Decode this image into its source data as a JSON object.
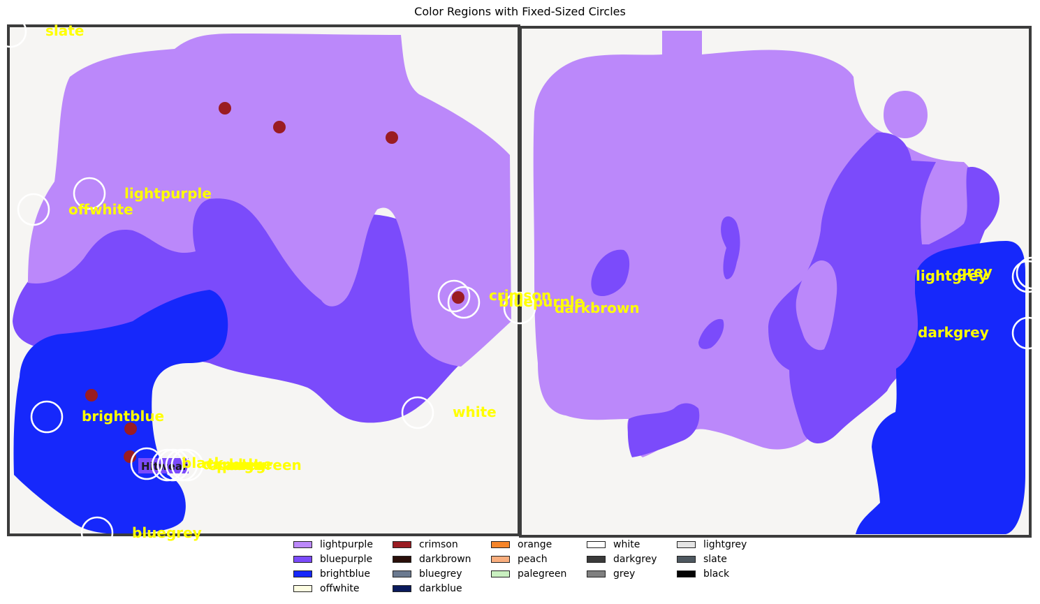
{
  "title": "Color Regions with Fixed-Sized Circles",
  "colors": {
    "background": "#f6f5f3",
    "frame": "#3c3c3c",
    "circle_stroke": "#ffffff",
    "label_text": "#ffff00",
    "lightpurple": "#bb88fa",
    "bluepurple": "#7b4bfb",
    "brightblue": "#1628fb",
    "crimson": "#9a1c22",
    "darkbrown": "#2a0f0a"
  },
  "labels": [
    {
      "id": "slate",
      "text": "slate"
    },
    {
      "id": "lightpurple",
      "text": "lightpurple"
    },
    {
      "id": "offwhite",
      "text": "offwhite"
    },
    {
      "id": "crimson",
      "text": "crimson"
    },
    {
      "id": "bluepurple",
      "text": "bluepurple"
    },
    {
      "id": "darkbrown",
      "text": "darkbrown"
    },
    {
      "id": "white",
      "text": "white"
    },
    {
      "id": "brightblue",
      "text": "brightblue"
    },
    {
      "id": "black",
      "text": "black"
    },
    {
      "id": "darkblue",
      "text": "darkblue"
    },
    {
      "id": "orange",
      "text": "orange"
    },
    {
      "id": "peach",
      "text": "peach"
    },
    {
      "id": "palegreen",
      "text": "palegreen"
    },
    {
      "id": "bluegrey",
      "text": "bluegrey"
    },
    {
      "id": "grey",
      "text": "grey"
    },
    {
      "id": "lightgrey",
      "text": "lightgrey"
    },
    {
      "id": "darkgrey",
      "text": "darkgrey"
    }
  ],
  "legend": [
    {
      "name": "lightpurple",
      "color": "#bb88fa"
    },
    {
      "name": "bluepurple",
      "color": "#7b4bfb"
    },
    {
      "name": "brightblue",
      "color": "#1628fb"
    },
    {
      "name": "offwhite",
      "color": "#fdfde2"
    },
    {
      "name": "crimson",
      "color": "#9a1c22"
    },
    {
      "name": "darkbrown",
      "color": "#2a0f0a"
    },
    {
      "name": "bluegrey",
      "color": "#6b7a90"
    },
    {
      "name": "darkblue",
      "color": "#0a1a5c"
    },
    {
      "name": "orange",
      "color": "#f5852a"
    },
    {
      "name": "peach",
      "color": "#f9ae7e"
    },
    {
      "name": "palegreen",
      "color": "#c9efc0"
    },
    {
      "name": "white",
      "color": "#ffffff"
    },
    {
      "name": "darkgrey",
      "color": "#3a3a3a"
    },
    {
      "name": "grey",
      "color": "#808080"
    },
    {
      "name": "lightgrey",
      "color": "#e4e4e4"
    },
    {
      "name": "slate",
      "color": "#4e5860"
    },
    {
      "name": "black",
      "color": "#050505"
    }
  ],
  "inset_text": "Hitwear"
}
